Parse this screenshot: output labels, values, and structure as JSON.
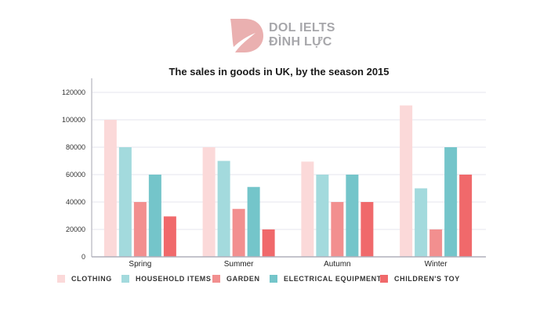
{
  "brand": {
    "line1": "DOL IELTS",
    "line2": "ĐÌNH LỰC",
    "color": "#eab0b0"
  },
  "chart_data": {
    "type": "bar",
    "title": "The sales in goods in UK, by the season 2015",
    "categories": [
      "Spring",
      "Summer",
      "Autumn",
      "Winter"
    ],
    "series": [
      {
        "name": "CLOTHING",
        "color": "#fbd9d9",
        "values": [
          100000,
          80000,
          69500,
          110500
        ]
      },
      {
        "name": "HOUSEHOLD ITEMS",
        "color": "#a3dadd",
        "values": [
          80000,
          70000,
          60000,
          50000
        ]
      },
      {
        "name": "GARDEN",
        "color": "#f28f8f",
        "values": [
          40000,
          35000,
          40000,
          20000
        ]
      },
      {
        "name": "ELECTRICAL EQUIPMENT",
        "color": "#74c5ca",
        "values": [
          60000,
          51000,
          60000,
          80000
        ]
      },
      {
        "name": "CHILDREN'S TOY",
        "color": "#f0696b",
        "values": [
          29500,
          20000,
          40000,
          60000
        ]
      }
    ],
    "ylim": [
      0,
      120000
    ],
    "yticks": [
      "0",
      "20000",
      "40000",
      "60000",
      "80000",
      "100000",
      "120000"
    ],
    "grid": true,
    "legend": "bottom"
  }
}
